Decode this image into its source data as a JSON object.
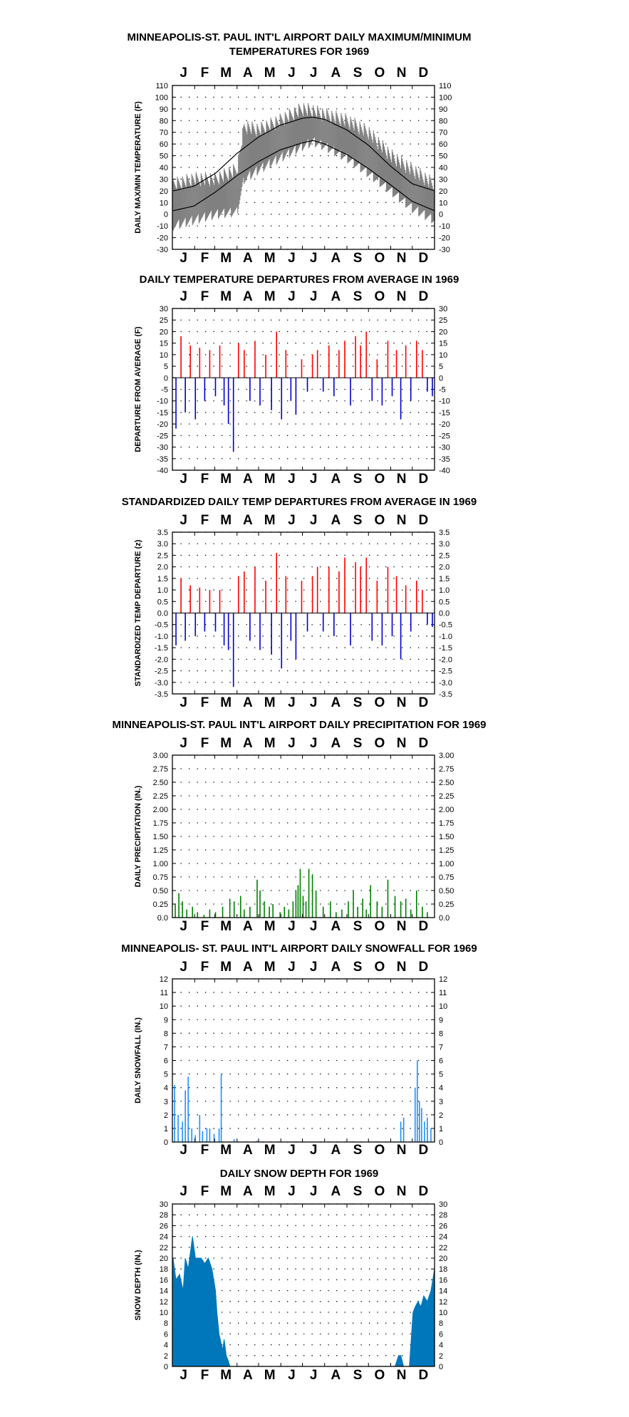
{
  "months": [
    "J",
    "F",
    "M",
    "A",
    "M",
    "J",
    "J",
    "A",
    "S",
    "O",
    "N",
    "D"
  ],
  "colors": {
    "frame": "#000000",
    "temp_band": "#808080",
    "normal_line": "#000000",
    "above": "#ff0000",
    "below": "#0000cc",
    "precip": "#008000",
    "snowfall": "#1e90ff",
    "snowdepth": "#0077bb"
  },
  "chart_data": [
    {
      "type": "line",
      "title": [
        "MINNEAPOLIS-ST. PAUL INT'L AIRPORT DAILY MAXIMUM/MINIMUM",
        "TEMPERATURES FOR 1969"
      ],
      "ylabel": "DAILY MAX/MIN TEMPERATURE (F)",
      "ylim": [
        -30,
        110
      ],
      "yticks": [
        110,
        100,
        90,
        80,
        70,
        60,
        50,
        40,
        30,
        20,
        10,
        0,
        -10,
        -20,
        -30
      ],
      "ytick_labels": [
        "110",
        "100",
        "90",
        "80",
        "70",
        "60",
        "50",
        "40",
        "30",
        "20",
        "10",
        "0",
        "-10",
        "-20",
        "-30"
      ],
      "grid": true,
      "series": [
        {
          "key": "normal_max",
          "x": [
            1,
            30,
            60,
            90,
            120,
            150,
            181,
            196,
            212,
            243,
            273,
            304,
            334,
            365
          ],
          "values": [
            20,
            24,
            35,
            52,
            66,
            76,
            82,
            83,
            81,
            72,
            59,
            41,
            26,
            20
          ]
        },
        {
          "key": "normal_min",
          "x": [
            1,
            30,
            60,
            90,
            120,
            150,
            181,
            196,
            212,
            243,
            273,
            304,
            334,
            365
          ],
          "values": [
            3,
            7,
            19,
            33,
            45,
            55,
            61,
            63,
            60,
            51,
            39,
            25,
            11,
            3
          ]
        },
        {
          "key": "daily_max_approx",
          "x": [
            1,
            30,
            60,
            90,
            100,
            120,
            150,
            181,
            196,
            212,
            243,
            273,
            304,
            334,
            365
          ],
          "values": [
            25,
            30,
            30,
            38,
            75,
            72,
            80,
            90,
            88,
            85,
            80,
            70,
            50,
            38,
            25
          ]
        },
        {
          "key": "daily_min_approx",
          "x": [
            1,
            30,
            60,
            90,
            100,
            120,
            150,
            181,
            196,
            212,
            243,
            273,
            304,
            334,
            365
          ],
          "values": [
            -10,
            -5,
            0,
            2,
            30,
            38,
            48,
            58,
            62,
            58,
            48,
            35,
            20,
            5,
            -5
          ]
        }
      ]
    },
    {
      "type": "bar",
      "title": [
        "DAILY TEMPERATURE DEPARTURES FROM AVERAGE IN 1969"
      ],
      "ylabel": "DEPARTURE FROM AVERAGE (F)",
      "ylim": [
        -40,
        30
      ],
      "yticks": [
        30,
        25,
        20,
        15,
        10,
        5,
        0,
        -5,
        -10,
        -15,
        -20,
        -25,
        -30,
        -35,
        -40
      ],
      "ytick_labels": [
        "30",
        "25",
        "20",
        "15",
        "10",
        "5",
        "0",
        "-5",
        "-10",
        "-15",
        "-20",
        "-25",
        "-30",
        "-35",
        "-40"
      ],
      "grid": true,
      "x": [
        5,
        12,
        18,
        25,
        32,
        38,
        45,
        52,
        60,
        66,
        72,
        78,
        85,
        92,
        100,
        108,
        115,
        122,
        130,
        138,
        145,
        152,
        158,
        165,
        172,
        180,
        188,
        195,
        202,
        210,
        218,
        225,
        232,
        240,
        248,
        255,
        262,
        270,
        278,
        285,
        292,
        300,
        306,
        312,
        318,
        325,
        332,
        340,
        348,
        355,
        362
      ],
      "values": [
        -22,
        18,
        -15,
        14,
        -18,
        13,
        -10,
        12,
        -8,
        14,
        -12,
        -20,
        -32,
        15,
        12,
        -10,
        16,
        -12,
        10,
        -14,
        20,
        -18,
        12,
        -10,
        -16,
        8,
        -6,
        10,
        12,
        -6,
        14,
        -8,
        12,
        16,
        -12,
        18,
        14,
        20,
        -10,
        8,
        -12,
        16,
        -8,
        12,
        -18,
        14,
        -10,
        16,
        12,
        -6,
        -8
      ]
    },
    {
      "type": "bar",
      "title": [
        "STANDARDIZED DAILY TEMP DEPARTURES FROM AVERAGE IN 1969"
      ],
      "ylabel": "STANDARDIZED TEMP DEPARTURE (z)",
      "ylim": [
        -3.5,
        3.5
      ],
      "yticks": [
        3.5,
        3.0,
        2.5,
        2.0,
        1.5,
        1.0,
        0.5,
        0.0,
        -0.5,
        -1.0,
        -1.5,
        -2.0,
        -2.5,
        -3.0,
        -3.5
      ],
      "ytick_labels": [
        "3.5",
        "3.0",
        "2.5",
        "2.0",
        "1.5",
        "1.0",
        "0.5",
        "0.0",
        "-0.5",
        "-1.0",
        "-1.5",
        "-2.0",
        "-2.5",
        "-3.0",
        "-3.5"
      ],
      "ytick_labels_right": [
        "3.5",
        "3.0",
        "2.5",
        "2.0",
        "1.5",
        "1.0",
        "0.5",
        "0.0",
        "-0.5",
        "-1.0",
        "-1.5",
        "-2.0",
        "-2.5",
        "-3.0",
        "-3.5"
      ],
      "grid": true,
      "x": [
        5,
        12,
        18,
        25,
        32,
        38,
        45,
        52,
        60,
        66,
        72,
        78,
        85,
        92,
        100,
        108,
        115,
        122,
        130,
        138,
        145,
        152,
        158,
        165,
        172,
        180,
        188,
        195,
        202,
        210,
        218,
        225,
        232,
        240,
        248,
        255,
        262,
        270,
        278,
        285,
        292,
        300,
        306,
        312,
        318,
        325,
        332,
        340,
        348,
        355,
        362
      ],
      "values": [
        -1.4,
        1.5,
        -1.2,
        1.2,
        -1.0,
        1.1,
        -0.8,
        1.0,
        -0.8,
        1.0,
        -1.4,
        -1.6,
        -3.2,
        1.6,
        1.8,
        -1.2,
        2.0,
        -1.6,
        1.4,
        -1.8,
        2.6,
        -2.4,
        1.6,
        -1.2,
        -2.0,
        1.4,
        -0.8,
        1.6,
        2.0,
        -0.8,
        2.0,
        -1.0,
        1.8,
        2.4,
        -1.4,
        2.2,
        2.0,
        2.4,
        -1.2,
        1.4,
        -1.4,
        2.0,
        -1.0,
        1.6,
        -2.0,
        1.2,
        -0.8,
        1.4,
        1.0,
        -0.5,
        -0.6
      ]
    },
    {
      "type": "bar",
      "title": [
        "MINNEAPOLIS-ST. PAUL INT'L AIRPORT DAILY PRECIPITATION FOR 1969"
      ],
      "ylabel": "DAILY PRECIPITATION (IN.)",
      "ylim": [
        0,
        3.0
      ],
      "yticks": [
        3.0,
        2.75,
        2.5,
        2.25,
        2.0,
        1.75,
        1.5,
        1.25,
        1.0,
        0.75,
        0.5,
        0.25,
        0.0
      ],
      "ytick_labels": [
        "3.00",
        "2.75",
        "2.50",
        "2.25",
        "2.00",
        "1.75",
        "1.50",
        "1.25",
        "1.00",
        "0.75",
        "0.50",
        "0.25",
        "0.0"
      ],
      "grid": true,
      "x": [
        4,
        9,
        14,
        20,
        28,
        35,
        44,
        52,
        60,
        70,
        80,
        86,
        95,
        100,
        108,
        118,
        122,
        128,
        135,
        140,
        150,
        156,
        162,
        168,
        172,
        175,
        178,
        182,
        186,
        190,
        195,
        200,
        210,
        220,
        228,
        236,
        245,
        252,
        258,
        265,
        270,
        276,
        285,
        292,
        300,
        310,
        318,
        325,
        332,
        340,
        348,
        355
      ],
      "values": [
        0.25,
        0.45,
        0.3,
        0.15,
        0.2,
        0.1,
        0.05,
        0.15,
        0.1,
        0.2,
        0.35,
        0.3,
        0.4,
        0.15,
        0.2,
        0.7,
        0.5,
        0.3,
        0.2,
        0.25,
        0.1,
        0.2,
        0.15,
        0.3,
        0.5,
        0.6,
        0.9,
        0.4,
        0.3,
        0.9,
        0.8,
        0.5,
        0.2,
        0.3,
        0.1,
        0.15,
        0.3,
        0.5,
        0.2,
        0.35,
        0.15,
        0.6,
        0.3,
        0.2,
        0.7,
        0.4,
        0.3,
        0.35,
        0.15,
        0.5,
        0.2,
        0.1
      ]
    },
    {
      "type": "bar",
      "title": [
        "MINNEAPOLIS- ST. PAUL INT'L AIRPORT DAILY SNOWFALL FOR 1969"
      ],
      "ylabel": "DAILY SNOWFALL (IN.)",
      "ylim": [
        0,
        12
      ],
      "yticks": [
        12,
        11,
        10,
        9,
        8,
        7,
        6,
        5,
        4,
        3,
        2,
        1,
        0
      ],
      "ytick_labels": [
        "12",
        "11",
        "10",
        "9",
        "8",
        "7",
        "6",
        "5",
        "4",
        "3",
        "2",
        "1",
        "0"
      ],
      "grid": true,
      "x": [
        3,
        8,
        14,
        18,
        22,
        27,
        32,
        38,
        42,
        48,
        52,
        58,
        65,
        68,
        86,
        118,
        318,
        322,
        338,
        341,
        344,
        347,
        351,
        355,
        360
      ],
      "values": [
        4.2,
        2.0,
        1.5,
        3.8,
        4.8,
        1.0,
        0.5,
        2.0,
        0.8,
        1.0,
        1.0,
        0.6,
        1.0,
        5.0,
        0.2,
        0.1,
        1.5,
        1.8,
        4.0,
        6.0,
        3.0,
        2.5,
        1.5,
        1.8,
        1.0
      ]
    },
    {
      "type": "area",
      "title": [
        "DAILY SNOW DEPTH FOR 1969"
      ],
      "ylabel": "SNOW DEPTH (IN.)",
      "ylim": [
        0,
        30
      ],
      "yticks": [
        30,
        28,
        26,
        24,
        22,
        20,
        18,
        16,
        14,
        12,
        10,
        8,
        6,
        4,
        2,
        0
      ],
      "ytick_labels": [
        "30",
        "28",
        "26",
        "24",
        "22",
        "20",
        "18",
        "16",
        "14",
        "12",
        "10",
        "8",
        "6",
        "4",
        "2",
        "0"
      ],
      "grid": true,
      "x": [
        1,
        5,
        10,
        15,
        18,
        22,
        26,
        28,
        32,
        36,
        40,
        45,
        50,
        55,
        60,
        62,
        65,
        70,
        72,
        75,
        78,
        80,
        82,
        310,
        315,
        318,
        322,
        330,
        335,
        338,
        342,
        346,
        350,
        355,
        360,
        365
      ],
      "values": [
        20,
        16,
        17,
        14,
        20,
        18,
        22,
        24,
        20,
        20,
        20,
        19,
        20,
        18,
        14,
        10,
        6,
        3,
        5,
        2,
        1,
        0,
        0,
        0,
        2,
        2,
        0,
        0,
        10,
        11,
        12,
        11,
        13,
        12,
        14,
        18
      ]
    }
  ]
}
